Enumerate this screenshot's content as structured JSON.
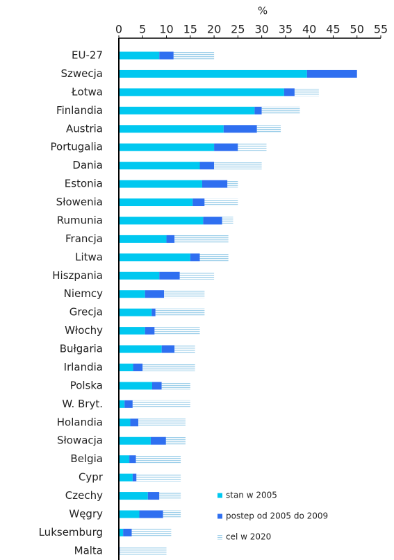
{
  "chart_data": {
    "type": "stacked_barh",
    "axis_label": "%",
    "categories": [
      "EU-27",
      "Szwecja",
      "Łotwa",
      "Finlandia",
      "Austria",
      "Portugalia",
      "Dania",
      "Estonia",
      "Słowenia",
      "Rumunia",
      "Francja",
      "Litwa",
      "Hiszpania",
      "Niemcy",
      "Grecja",
      "Włochy",
      "Bułgaria",
      "Irlandia",
      "Polska",
      "W. Bryt.",
      "Holandia",
      "Słowacja",
      "Belgia",
      "Cypr",
      "Czechy",
      "Węgry",
      "Luksemburg",
      "Malta"
    ],
    "series": [
      {
        "name": "stan w 2005",
        "color": "#00c8f0",
        "pattern": "solid",
        "values": [
          8.5,
          39.5,
          34.7,
          28.5,
          22,
          20,
          17,
          17.5,
          15.5,
          17.7,
          10,
          15,
          8.5,
          5.5,
          6.9,
          5.5,
          9,
          3,
          7,
          1.2,
          2.4,
          6.7,
          2.2,
          2.9,
          6.1,
          4.3,
          0.9,
          0
        ]
      },
      {
        "name": "postep od 2005 do 2009",
        "color": "#2f6ff0",
        "pattern": "solid",
        "values": [
          3,
          10.5,
          2.2,
          1.5,
          7,
          5,
          3,
          5.3,
          2.5,
          4,
          1.7,
          2,
          4.3,
          4,
          0.8,
          2,
          2.7,
          2,
          2,
          1.7,
          1.7,
          3.2,
          1.4,
          0.8,
          2.4,
          5,
          1.8,
          0.2
        ]
      },
      {
        "name": "cel w 2020",
        "color": "#9fd0ea",
        "pattern": "hstripes",
        "values": [
          8.5,
          0,
          5.1,
          8,
          5,
          6,
          10,
          2.2,
          7,
          2.3,
          11.3,
          6,
          7.2,
          8.5,
          10.3,
          9.5,
          4.3,
          11,
          6,
          12.1,
          9.9,
          4.1,
          9.4,
          9.3,
          4.5,
          3.7,
          8.3,
          9.8
        ]
      }
    ],
    "xlim": [
      0,
      55
    ],
    "xticks": [
      0,
      5,
      10,
      15,
      20,
      25,
      30,
      35,
      40,
      45,
      50,
      55
    ]
  }
}
